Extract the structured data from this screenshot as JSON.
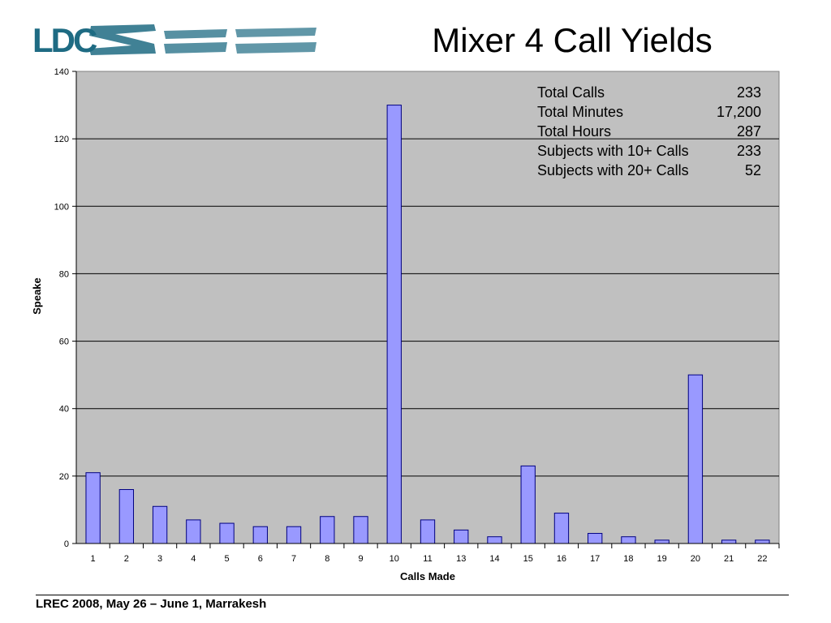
{
  "header": {
    "logo_text": "LDC",
    "logo_color": "#1e6b83",
    "title": "Mixer 4 Call Yields"
  },
  "stats": [
    {
      "label": "Total Calls",
      "value": "233"
    },
    {
      "label": "Total Minutes",
      "value": "17,200"
    },
    {
      "label": "Total Hours",
      "value": "287"
    },
    {
      "label": "Subjects with 10+ Calls",
      "value": "233"
    },
    {
      "label": "Subjects with 20+ Calls",
      "value": "52"
    }
  ],
  "chart_data": {
    "type": "bar",
    "title": "",
    "xlabel": "Calls Made",
    "ylabel": "Speake",
    "ylim": [
      0,
      140
    ],
    "yticks": [
      0,
      20,
      40,
      60,
      80,
      100,
      120,
      140
    ],
    "categories": [
      "1",
      "2",
      "3",
      "4",
      "5",
      "6",
      "7",
      "8",
      "9",
      "10",
      "11",
      "13",
      "14",
      "15",
      "16",
      "17",
      "18",
      "19",
      "20",
      "21",
      "22"
    ],
    "values": [
      21,
      16,
      11,
      7,
      6,
      5,
      5,
      8,
      8,
      130,
      7,
      4,
      2,
      23,
      9,
      3,
      2,
      1,
      50,
      1,
      1
    ],
    "grid": true,
    "legend": "none",
    "colors": {
      "plot_bg": "#c0c0c0",
      "bar": "#9999ff",
      "bar_edge": "#000080"
    }
  },
  "footer": {
    "text": "LREC 2008, May 26 – June 1, Marrakesh"
  }
}
